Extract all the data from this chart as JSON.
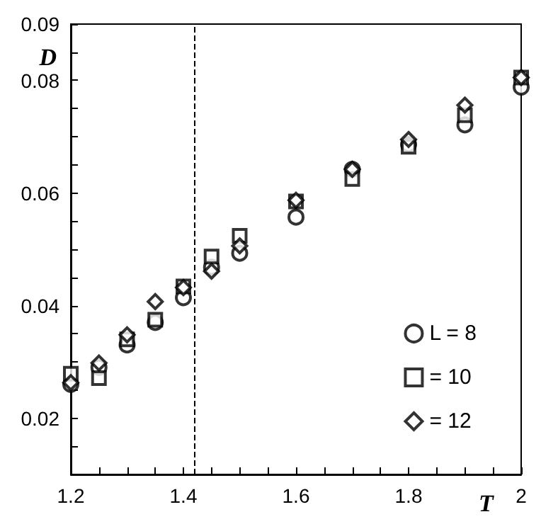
{
  "chart_data": {
    "type": "scatter",
    "xlabel": "T",
    "ylabel": "D",
    "x": [
      1.2,
      1.25,
      1.3,
      1.35,
      1.4,
      1.45,
      1.5,
      1.6,
      1.7,
      1.8,
      1.9,
      2.0
    ],
    "series": [
      {
        "name": "L = 8",
        "color": "#000000",
        "marker": "circle",
        "values": [
          0.026,
          0.029,
          0.033,
          0.037,
          0.0414,
          0.0468,
          0.0493,
          0.0557,
          0.0642,
          0.0686,
          0.0721,
          0.0788
        ]
      },
      {
        "name": "= 10",
        "color": "#000000",
        "marker": "square",
        "values": [
          0.0279,
          0.0271,
          0.034,
          0.0375,
          0.0434,
          0.0487,
          0.0524,
          0.0585,
          0.0625,
          0.0682,
          0.0738,
          0.0805
        ]
      },
      {
        "name": "= 12",
        "color": "#000000",
        "marker": "diamond",
        "values": [
          0.0263,
          0.0298,
          0.0348,
          0.0407,
          0.0432,
          0.0461,
          0.0506,
          0.0587,
          0.0642,
          0.0695,
          0.0756,
          0.0805
        ]
      }
    ],
    "xlim": [
      1.2,
      2.0
    ],
    "xticks": [
      1.2,
      {
        "value": 1.25,
        "label": null
      },
      1.4,
      {
        "value": 1.3,
        "label": null
      },
      {
        "value": 1.35,
        "label": null
      },
      {
        "value": 1.45,
        "label": null
      },
      {
        "value": 1.5,
        "label": null
      },
      {
        "value": 1.55,
        "label": null
      },
      1.6,
      {
        "value": 1.65,
        "label": null
      },
      {
        "value": 1.7,
        "label": null
      },
      {
        "value": 1.75,
        "label": null
      },
      1.8,
      {
        "value": 1.85,
        "label": null
      },
      {
        "value": 1.9,
        "label": null
      },
      {
        "value": 1.95,
        "label": null
      },
      2
    ],
    "ylim": [
      0.01,
      0.09
    ],
    "yticks": [
      {
        "value": 0.01,
        "label": null
      },
      {
        "value": 0.015,
        "label": null
      },
      0.02,
      {
        "value": 0.025,
        "label": null
      },
      {
        "value": 0.03,
        "label": null
      },
      {
        "value": 0.035,
        "label": null
      },
      0.04,
      {
        "value": 0.045,
        "label": null
      },
      {
        "value": 0.05,
        "label": null
      },
      {
        "value": 0.055,
        "label": null
      },
      0.06,
      {
        "value": 0.065,
        "label": null
      },
      {
        "value": 0.07,
        "label": null
      },
      {
        "value": 0.075,
        "label": null
      },
      0.08,
      {
        "value": 0.085,
        "label": null
      },
      0.09
    ],
    "ref_lines": [
      {
        "axis": "x",
        "value": 1.42,
        "color": "#000000",
        "line_style": "dashed"
      }
    ],
    "legend": "bottom right",
    "grid": false
  }
}
